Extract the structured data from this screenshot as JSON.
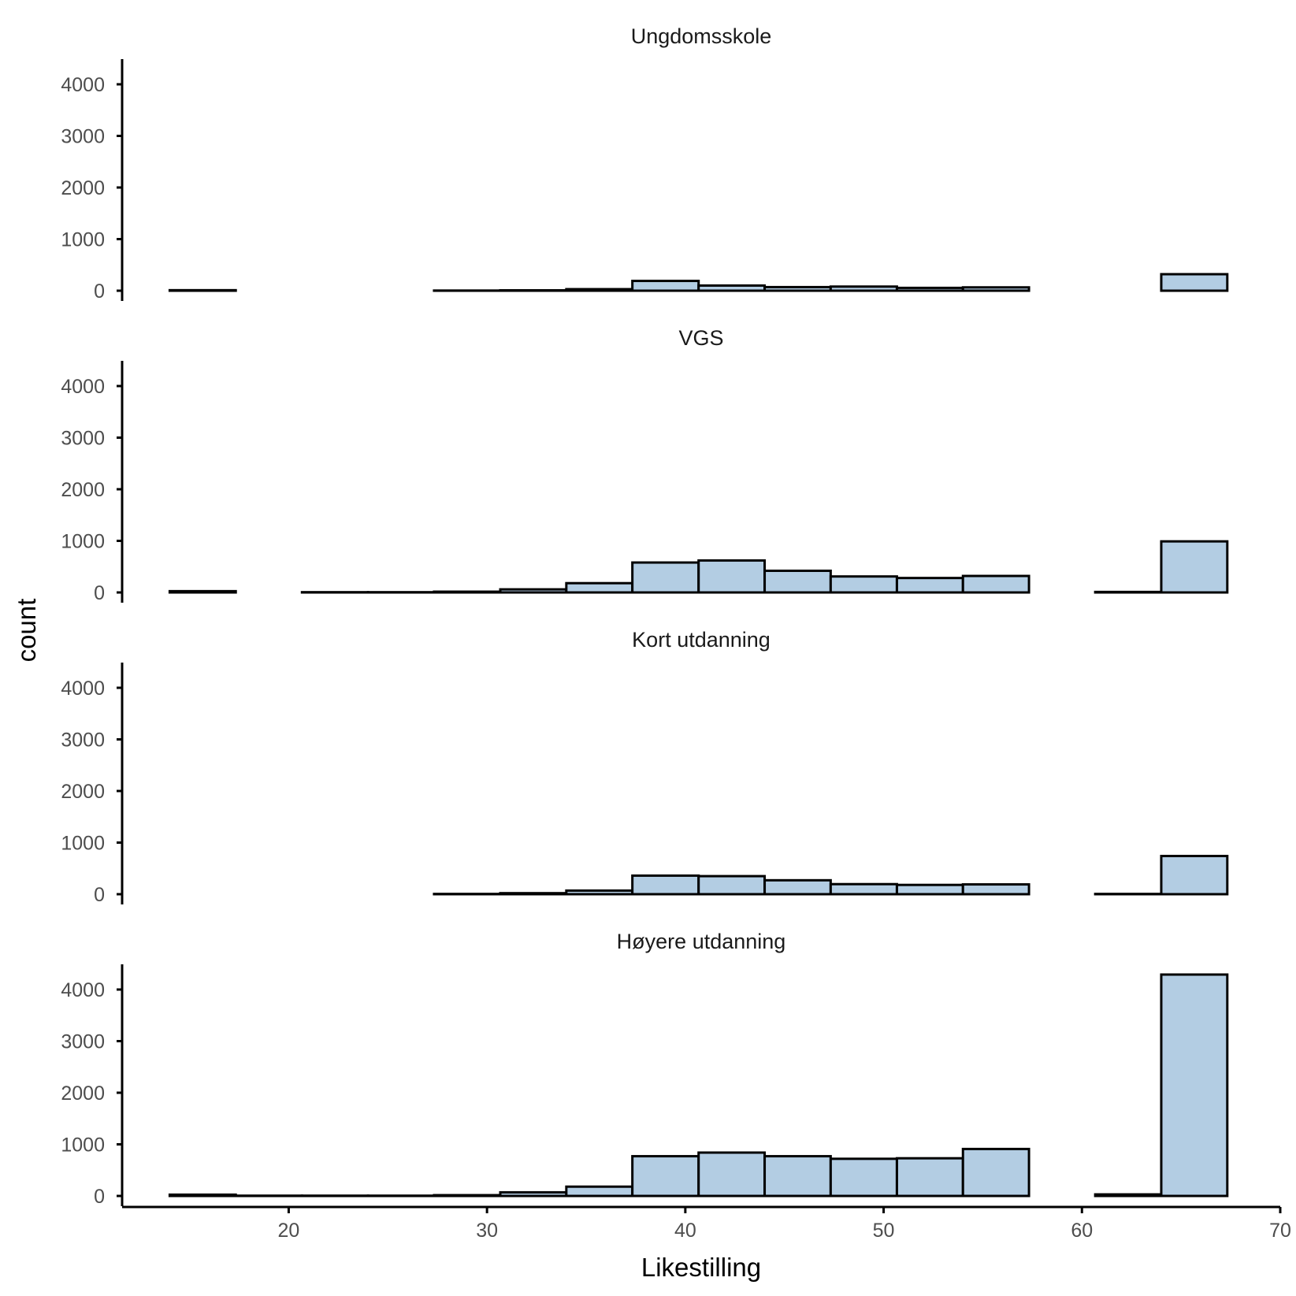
{
  "chart_data": {
    "type": "bar",
    "subtype": "faceted-histogram",
    "xlabel": "Likestilling",
    "ylabel": "count",
    "xlim": [
      11.6,
      70
    ],
    "ylim": [
      -180,
      4500
    ],
    "x_ticks": [
      20,
      30,
      40,
      50,
      60,
      70
    ],
    "y_ticks": [
      0,
      1000,
      2000,
      3000,
      4000
    ],
    "fill_color": "#b3cde3",
    "outline_color": "#000000",
    "grid": false,
    "bins": [
      [
        14.0,
        17.33
      ],
      [
        17.33,
        20.67
      ],
      [
        20.67,
        24.0
      ],
      [
        24.0,
        27.33
      ],
      [
        27.33,
        30.67
      ],
      [
        30.67,
        34.0
      ],
      [
        34.0,
        37.33
      ],
      [
        37.33,
        40.67
      ],
      [
        40.67,
        44.0
      ],
      [
        44.0,
        47.33
      ],
      [
        47.33,
        50.67
      ],
      [
        50.67,
        54.0
      ],
      [
        54.0,
        57.33
      ],
      [
        57.33,
        60.67
      ],
      [
        60.67,
        64.0
      ],
      [
        64.0,
        67.33
      ]
    ],
    "panels": [
      {
        "name": "Ungdomsskole",
        "values": [
          10,
          0,
          0,
          0,
          3,
          8,
          30,
          190,
          100,
          70,
          80,
          55,
          65,
          0,
          0,
          320
        ]
      },
      {
        "name": "VGS",
        "values": [
          25,
          0,
          5,
          5,
          15,
          60,
          180,
          580,
          620,
          420,
          310,
          280,
          320,
          0,
          10,
          990
        ]
      },
      {
        "name": "Kort utdanning",
        "values": [
          0,
          0,
          0,
          0,
          5,
          20,
          70,
          360,
          350,
          270,
          195,
          180,
          190,
          0,
          5,
          740
        ]
      },
      {
        "name": "Høyere utdanning",
        "values": [
          25,
          5,
          5,
          5,
          15,
          70,
          180,
          770,
          840,
          770,
          720,
          730,
          910,
          0,
          30,
          4290
        ]
      }
    ]
  }
}
